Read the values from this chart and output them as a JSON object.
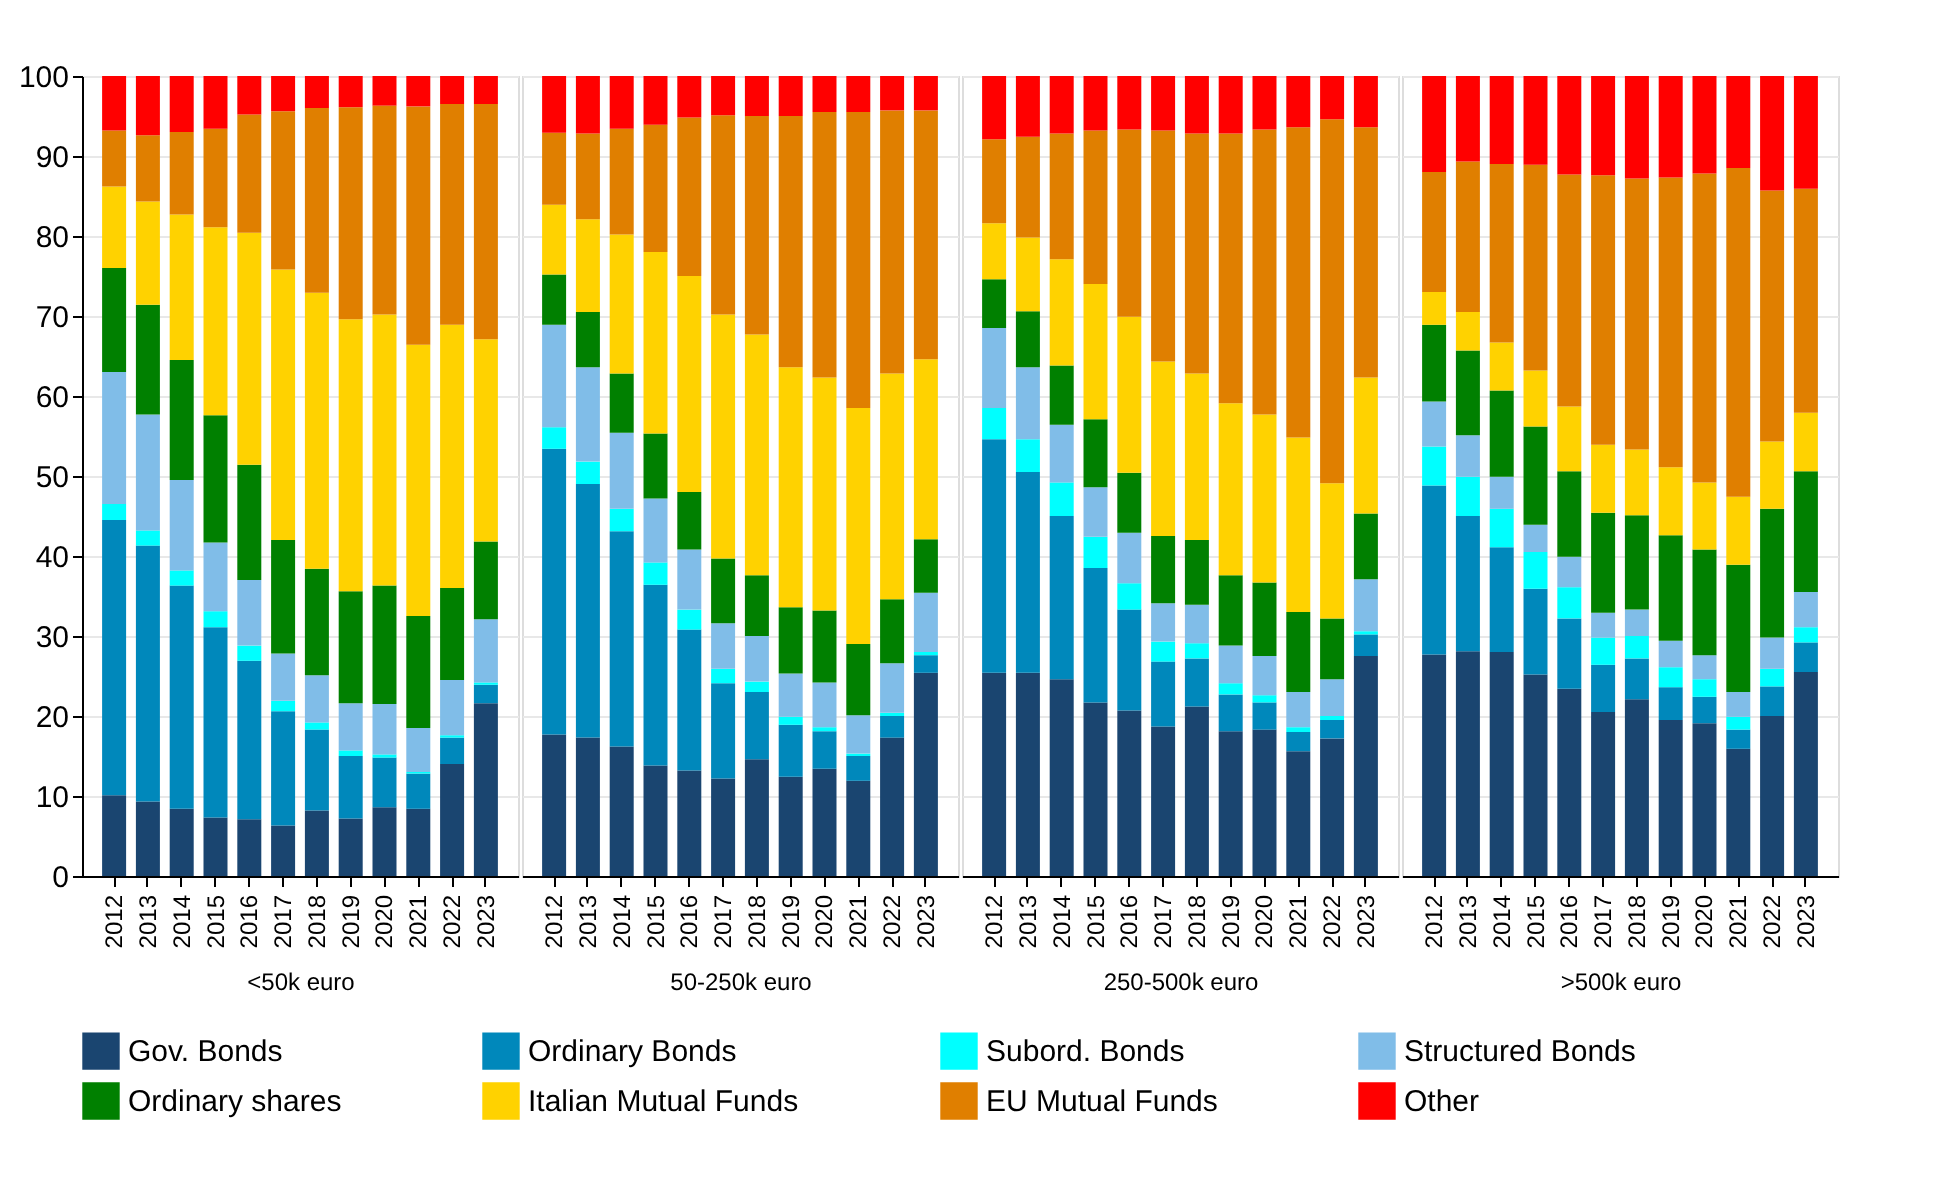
{
  "chart_data": [
    {
      "type": "bar",
      "stacked": true,
      "xlabel": "<50k euro",
      "categories": [
        "2012",
        "2013",
        "2014",
        "2015",
        "2016",
        "2017",
        "2018",
        "2019",
        "2020",
        "2021",
        "2022",
        "2023"
      ],
      "ylim": [
        0,
        100
      ],
      "yticks": [
        0,
        10,
        20,
        30,
        40,
        50,
        60,
        70,
        80,
        90,
        100
      ],
      "grid": "y",
      "legend": "bottom",
      "series": [
        {
          "name": "Gov. Bonds",
          "color": "#1a4570",
          "values": [
            10.1,
            9.3,
            8.4,
            7.3,
            7.1,
            6.3,
            8.2,
            7.2,
            8.6,
            8.4,
            14.0,
            21.6
          ]
        },
        {
          "name": "Ordinary Bonds",
          "color": "#0088bb",
          "values": [
            34.4,
            32.0,
            27.9,
            23.8,
            19.8,
            14.3,
            10.1,
            7.8,
            6.2,
            4.4,
            3.3,
            2.3
          ]
        },
        {
          "name": "Subord. Bonds",
          "color": "#00ffff",
          "values": [
            2.0,
            1.9,
            1.9,
            2.0,
            1.9,
            1.3,
            0.9,
            0.7,
            0.4,
            0.2,
            0.3,
            0.3
          ]
        },
        {
          "name": "Structured Bonds",
          "color": "#80bde8",
          "values": [
            16.5,
            14.5,
            11.3,
            8.6,
            8.2,
            5.9,
            5.9,
            5.9,
            6.3,
            5.5,
            6.9,
            7.9
          ]
        },
        {
          "name": "Ordinary shares",
          "color": "#008000",
          "values": [
            13.0,
            13.7,
            15.0,
            15.9,
            14.4,
            14.2,
            13.3,
            14.0,
            14.8,
            14.0,
            11.5,
            9.7
          ]
        },
        {
          "name": "Italian Mutual Funds",
          "color": "#ffd200",
          "values": [
            10.2,
            12.9,
            18.2,
            23.5,
            29.0,
            33.8,
            34.5,
            34.0,
            33.9,
            33.9,
            32.9,
            25.3
          ]
        },
        {
          "name": "EU Mutual Funds",
          "color": "#e07f00",
          "values": [
            7.0,
            8.3,
            10.3,
            12.3,
            14.8,
            19.8,
            23.1,
            26.5,
            26.1,
            29.8,
            27.6,
            29.4
          ]
        },
        {
          "name": "Other",
          "color": "#ff0000",
          "values": [
            6.8,
            7.4,
            7.0,
            6.6,
            4.8,
            4.4,
            4.0,
            3.9,
            3.7,
            3.8,
            3.5,
            3.5
          ]
        }
      ]
    },
    {
      "type": "bar",
      "stacked": true,
      "xlabel": "50-250k euro",
      "categories": [
        "2012",
        "2013",
        "2014",
        "2015",
        "2016",
        "2017",
        "2018",
        "2019",
        "2020",
        "2021",
        "2022",
        "2023"
      ],
      "ylim": [
        0,
        100
      ],
      "yticks": [
        0,
        10,
        20,
        30,
        40,
        50,
        60,
        70,
        80,
        90,
        100
      ],
      "grid": "y",
      "legend": "bottom",
      "tick_labels": "x",
      "series": [
        {
          "name": "Gov. Bonds",
          "color": "#1a4570",
          "values": [
            17.7,
            17.3,
            16.2,
            13.8,
            13.2,
            12.2,
            14.6,
            12.4,
            13.4,
            11.9,
            17.3,
            25.4
          ]
        },
        {
          "name": "Ordinary Bonds",
          "color": "#0088bb",
          "values": [
            35.7,
            31.7,
            26.9,
            22.6,
            17.6,
            11.9,
            8.4,
            6.5,
            4.7,
            3.1,
            2.7,
            2.2
          ]
        },
        {
          "name": "Subord. Bonds",
          "color": "#00ffff",
          "values": [
            2.7,
            2.8,
            2.8,
            2.8,
            2.5,
            1.8,
            1.3,
            1.0,
            0.5,
            0.3,
            0.4,
            0.4
          ]
        },
        {
          "name": "Structured Bonds",
          "color": "#80bde8",
          "values": [
            12.8,
            11.8,
            9.5,
            8.0,
            7.5,
            5.7,
            5.7,
            5.4,
            5.6,
            4.8,
            6.2,
            7.4
          ]
        },
        {
          "name": "Ordinary shares",
          "color": "#008000",
          "values": [
            6.3,
            6.9,
            7.4,
            8.1,
            7.2,
            8.1,
            7.6,
            8.3,
            9.0,
            8.9,
            8.0,
            6.7
          ]
        },
        {
          "name": "Italian Mutual Funds",
          "color": "#ffd200",
          "values": [
            8.7,
            11.6,
            17.4,
            22.7,
            27.0,
            30.5,
            30.1,
            30.0,
            29.1,
            29.5,
            28.2,
            22.5
          ]
        },
        {
          "name": "EU Mutual Funds",
          "color": "#e07f00",
          "values": [
            9.0,
            10.7,
            13.2,
            15.9,
            19.8,
            24.9,
            27.3,
            31.4,
            33.2,
            37.0,
            32.9,
            31.1
          ]
        },
        {
          "name": "Other",
          "color": "#ff0000",
          "values": [
            7.1,
            7.2,
            6.6,
            6.1,
            5.2,
            4.9,
            5.0,
            5.0,
            4.5,
            4.5,
            4.3,
            4.3
          ]
        }
      ]
    },
    {
      "type": "bar",
      "stacked": true,
      "xlabel": "250-500k euro",
      "categories": [
        "2012",
        "2013",
        "2014",
        "2015",
        "2016",
        "2017",
        "2018",
        "2019",
        "2020",
        "2021",
        "2022",
        "2023"
      ],
      "ylim": [
        0,
        100
      ],
      "yticks": [
        0,
        10,
        20,
        30,
        40,
        50,
        60,
        70,
        80,
        90,
        100
      ],
      "grid": "y",
      "legend": "bottom",
      "tick_labels": "x",
      "series": [
        {
          "name": "Gov. Bonds",
          "color": "#1a4570",
          "values": [
            25.4,
            25.4,
            24.6,
            21.7,
            20.7,
            18.7,
            21.2,
            18.1,
            18.3,
            15.6,
            17.2,
            27.5
          ]
        },
        {
          "name": "Ordinary Bonds",
          "color": "#0088bb",
          "values": [
            29.2,
            25.1,
            20.4,
            16.8,
            12.6,
            8.1,
            6.0,
            4.6,
            3.4,
            2.4,
            2.3,
            2.7
          ]
        },
        {
          "name": "Subord. Bonds",
          "color": "#00ffff",
          "values": [
            3.9,
            4.1,
            4.2,
            3.9,
            3.3,
            2.5,
            1.9,
            1.4,
            0.9,
            0.6,
            0.5,
            0.4
          ]
        },
        {
          "name": "Structured Bonds",
          "color": "#80bde8",
          "values": [
            10.0,
            9.0,
            7.2,
            6.2,
            6.3,
            4.8,
            4.8,
            4.7,
            4.9,
            4.4,
            4.6,
            6.5
          ]
        },
        {
          "name": "Ordinary shares",
          "color": "#008000",
          "values": [
            6.1,
            7.0,
            7.4,
            8.5,
            7.5,
            8.4,
            8.1,
            8.8,
            9.2,
            10.0,
            7.6,
            8.2
          ]
        },
        {
          "name": "Italian Mutual Funds",
          "color": "#ffd200",
          "values": [
            7.0,
            9.2,
            13.3,
            16.9,
            19.5,
            21.8,
            20.8,
            21.5,
            21.0,
            21.8,
            16.9,
            17.0
          ]
        },
        {
          "name": "EU Mutual Funds",
          "color": "#e07f00",
          "values": [
            10.5,
            12.6,
            15.7,
            19.2,
            23.4,
            28.9,
            30.0,
            33.7,
            35.6,
            38.8,
            45.5,
            31.3
          ]
        },
        {
          "name": "Other",
          "color": "#ff0000",
          "values": [
            7.9,
            7.6,
            7.2,
            6.8,
            6.7,
            6.8,
            7.2,
            7.2,
            6.7,
            6.4,
            5.4,
            6.4
          ]
        }
      ]
    },
    {
      "type": "bar",
      "stacked": true,
      "xlabel": ">500k euro",
      "categories": [
        "2012",
        "2013",
        "2014",
        "2015",
        "2016",
        "2017",
        "2018",
        "2019",
        "2020",
        "2021",
        "2022",
        "2023"
      ],
      "ylim": [
        0,
        100
      ],
      "yticks": [
        0,
        10,
        20,
        30,
        40,
        50,
        60,
        70,
        80,
        90,
        100
      ],
      "grid": "y",
      "legend": "bottom",
      "tick_labels": "x",
      "series": [
        {
          "name": "Gov. Bonds",
          "color": "#1a4570",
          "values": [
            27.7,
            28.1,
            28.0,
            25.2,
            23.4,
            20.5,
            22.1,
            19.5,
            19.1,
            15.9,
            20.0,
            25.5
          ]
        },
        {
          "name": "Ordinary Bonds",
          "color": "#0088bb",
          "values": [
            21.1,
            16.9,
            13.1,
            10.7,
            8.8,
            5.9,
            5.1,
            4.1,
            3.3,
            2.4,
            3.7,
            3.7
          ]
        },
        {
          "name": "Subord. Bonds",
          "color": "#00ffff",
          "values": [
            4.9,
            4.9,
            4.8,
            4.6,
            3.9,
            3.4,
            2.8,
            2.5,
            2.2,
            1.6,
            2.2,
            1.9
          ]
        },
        {
          "name": "Structured Bonds",
          "color": "#80bde8",
          "values": [
            5.6,
            5.2,
            4.0,
            3.4,
            3.8,
            3.1,
            3.3,
            3.3,
            3.0,
            3.1,
            3.9,
            4.4
          ]
        },
        {
          "name": "Ordinary shares",
          "color": "#008000",
          "values": [
            9.6,
            10.6,
            10.8,
            12.3,
            10.7,
            12.5,
            11.8,
            13.2,
            13.2,
            15.9,
            16.1,
            15.1
          ]
        },
        {
          "name": "Italian Mutual Funds",
          "color": "#ffd200",
          "values": [
            4.1,
            4.8,
            6.0,
            7.0,
            8.1,
            8.5,
            8.2,
            8.5,
            8.4,
            8.5,
            8.4,
            7.3
          ]
        },
        {
          "name": "EU Mutual Funds",
          "color": "#e07f00",
          "values": [
            15.0,
            18.8,
            22.3,
            25.7,
            29.0,
            33.7,
            33.9,
            36.2,
            38.6,
            41.1,
            31.4,
            28.0
          ]
        },
        {
          "name": "Other",
          "color": "#ff0000",
          "values": [
            12.0,
            10.7,
            11.0,
            11.1,
            12.3,
            12.4,
            12.8,
            12.7,
            12.2,
            11.5,
            14.3,
            14.1
          ]
        }
      ]
    }
  ]
}
